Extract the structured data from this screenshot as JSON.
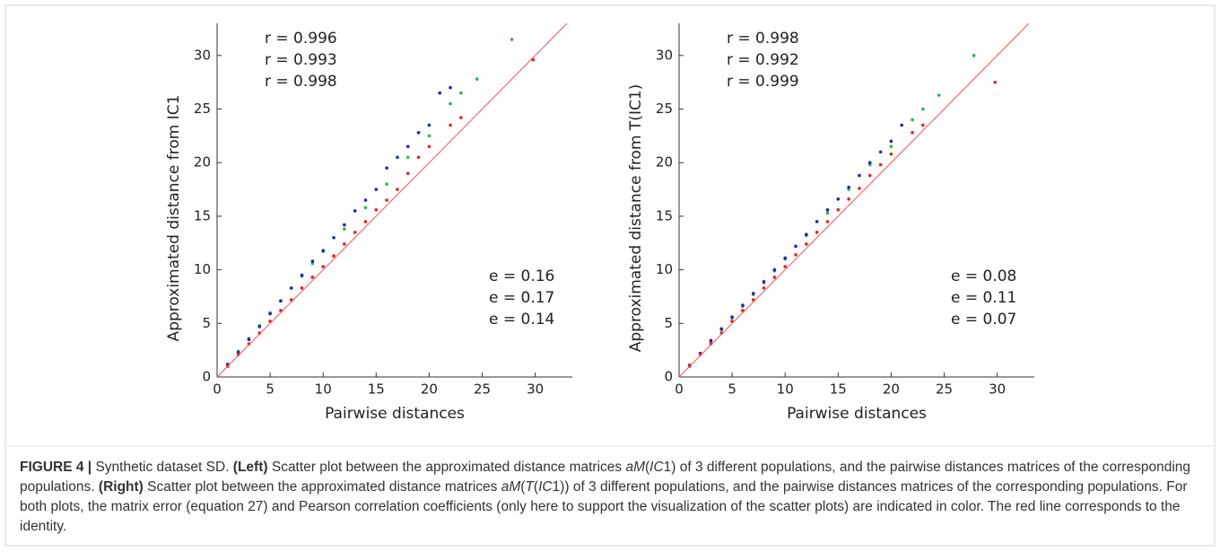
{
  "chart_data": [
    {
      "type": "scatter",
      "xlabel": "Pairwise distances",
      "ylabel": "Approximated distance from IC1",
      "xlim": [
        0,
        33.5
      ],
      "ylim": [
        0,
        33
      ],
      "xticks": [
        0,
        5,
        10,
        15,
        20,
        25,
        30
      ],
      "yticks": [
        0,
        5,
        10,
        15,
        20,
        25,
        30
      ],
      "series": [
        {
          "color": "#22c03a",
          "x": [
            1,
            2,
            3,
            4,
            5,
            6,
            7,
            8,
            9,
            10,
            12,
            14,
            16,
            18,
            20,
            22,
            23,
            24.5,
            27.8
          ],
          "values": [
            1.2,
            2.4,
            3.6,
            4.8,
            6,
            7.1,
            8.3,
            9.4,
            10.6,
            11.7,
            13.8,
            15.8,
            18,
            20.5,
            22.5,
            25.5,
            26.5,
            27.8,
            31.5
          ]
        },
        {
          "color": "#1c1ce0",
          "x": [
            1,
            2,
            3,
            4,
            5,
            6,
            7,
            8,
            9,
            10,
            11,
            12,
            13,
            14,
            15,
            16,
            17,
            18,
            19,
            20,
            21,
            22
          ],
          "values": [
            1.15,
            2.3,
            3.5,
            4.7,
            5.9,
            7.1,
            8.3,
            9.5,
            10.8,
            11.8,
            13,
            14.2,
            15.5,
            16.5,
            17.5,
            19.5,
            20.5,
            21.5,
            22.8,
            23.5,
            26.5,
            27
          ]
        },
        {
          "color": "#ee1c1c",
          "x": [
            1,
            2,
            3,
            4,
            5,
            6,
            7,
            8,
            9,
            10,
            11,
            12,
            13,
            14,
            15,
            16,
            17,
            18,
            19,
            20,
            22,
            23,
            29.8
          ],
          "values": [
            1,
            2.1,
            3.1,
            4.1,
            5.2,
            6.2,
            7.2,
            8.3,
            9.3,
            10.3,
            11.3,
            12.4,
            13.5,
            14.5,
            15.6,
            16.5,
            17.5,
            19,
            20.5,
            21.5,
            23.5,
            24.2,
            29.6
          ]
        },
        {
          "type": "line",
          "color": "#ff5050",
          "x": [
            0,
            33
          ],
          "values": [
            0,
            33
          ]
        }
      ],
      "annotations": [
        {
          "text": "r = 0.996",
          "color": "#22c03a"
        },
        {
          "text": "r = 0.993",
          "color": "#1c1ce0"
        },
        {
          "text": "r = 0.998",
          "color": "#ee1c1c"
        },
        {
          "text": "e = 0.16",
          "color": "#22c03a"
        },
        {
          "text": "e = 0.17",
          "color": "#1c1ce0"
        },
        {
          "text": "e = 0.14",
          "color": "#ee1c1c"
        }
      ]
    },
    {
      "type": "scatter",
      "xlabel": "Pairwise distances",
      "ylabel": "Approximated distance from T(IC1)",
      "xlim": [
        0,
        33.5
      ],
      "ylim": [
        0,
        33
      ],
      "xticks": [
        0,
        5,
        10,
        15,
        20,
        25,
        30
      ],
      "yticks": [
        0,
        5,
        10,
        15,
        20,
        25,
        30
      ],
      "series": [
        {
          "color": "#22c03a",
          "x": [
            1,
            2,
            3,
            4,
            5,
            6,
            7,
            8,
            9,
            10,
            12,
            14,
            16,
            18,
            20,
            22,
            23,
            24.5,
            27.8
          ],
          "values": [
            1.1,
            2.2,
            3.3,
            4.4,
            5.5,
            6.6,
            7.7,
            8.8,
            9.9,
            11,
            13.2,
            15.3,
            17.5,
            19.8,
            21.5,
            24,
            25,
            26.3,
            30
          ]
        },
        {
          "color": "#1c1ce0",
          "x": [
            1,
            2,
            3,
            4,
            5,
            6,
            7,
            8,
            9,
            10,
            11,
            12,
            13,
            14,
            15,
            16,
            17,
            18,
            19,
            20,
            21
          ],
          "values": [
            1.1,
            2.2,
            3.4,
            4.5,
            5.6,
            6.7,
            7.8,
            8.9,
            10,
            11.1,
            12.2,
            13.3,
            14.5,
            15.6,
            16.6,
            17.7,
            18.8,
            20,
            21,
            22,
            23.5
          ]
        },
        {
          "color": "#ee1c1c",
          "x": [
            1,
            2,
            3,
            4,
            5,
            6,
            7,
            8,
            9,
            10,
            11,
            12,
            13,
            14,
            15,
            16,
            17,
            18,
            19,
            20,
            22,
            23,
            29.8
          ],
          "values": [
            1,
            2.1,
            3.1,
            4.1,
            5.2,
            6.2,
            7.2,
            8.3,
            9.3,
            10.3,
            11.4,
            12.4,
            13.5,
            14.5,
            15.6,
            16.6,
            17.6,
            18.8,
            19.8,
            20.8,
            22.8,
            23.5,
            27.5
          ]
        },
        {
          "type": "line",
          "color": "#ff5050",
          "x": [
            0,
            33
          ],
          "values": [
            0,
            33
          ]
        }
      ],
      "annotations": [
        {
          "text": "r = 0.998",
          "color": "#22c03a"
        },
        {
          "text": "r = 0.992",
          "color": "#1c1ce0"
        },
        {
          "text": "r = 0.999",
          "color": "#ee1c1c"
        },
        {
          "text": "e = 0.08",
          "color": "#22c03a"
        },
        {
          "text": "e = 0.11",
          "color": "#1c1ce0"
        },
        {
          "text": "e = 0.07",
          "color": "#ee1c1c"
        }
      ]
    }
  ],
  "caption": [
    {
      "text": "FIGURE 4 | ",
      "style": "bold"
    },
    {
      "text": "Synthetic dataset SD. ",
      "style": "normal"
    },
    {
      "text": "(Left)",
      "style": "bold"
    },
    {
      "text": " Scatter plot between the approximated distance matrices ",
      "style": "normal"
    },
    {
      "text": "aM",
      "style": "italic"
    },
    {
      "text": "(",
      "style": "normal"
    },
    {
      "text": "IC",
      "style": "italic"
    },
    {
      "text": "1) of 3 different populations, and the pairwise distances matrices of the corresponding populations. ",
      "style": "normal"
    },
    {
      "text": "(Right)",
      "style": "bold"
    },
    {
      "text": " Scatter plot between the approximated distance matrices ",
      "style": "normal"
    },
    {
      "text": "aM",
      "style": "italic"
    },
    {
      "text": "(",
      "style": "normal"
    },
    {
      "text": "T",
      "style": "italic"
    },
    {
      "text": "(",
      "style": "normal"
    },
    {
      "text": "IC",
      "style": "italic"
    },
    {
      "text": "1)) of 3 different populations, and the pairwise distances matrices of the corresponding populations. For both plots, the matrix error (equation 27) and Pearson correlation coefficients (only here to support the visualization of the scatter plots) are indicated in color. The red line corresponds to the identity.",
      "style": "normal"
    }
  ]
}
